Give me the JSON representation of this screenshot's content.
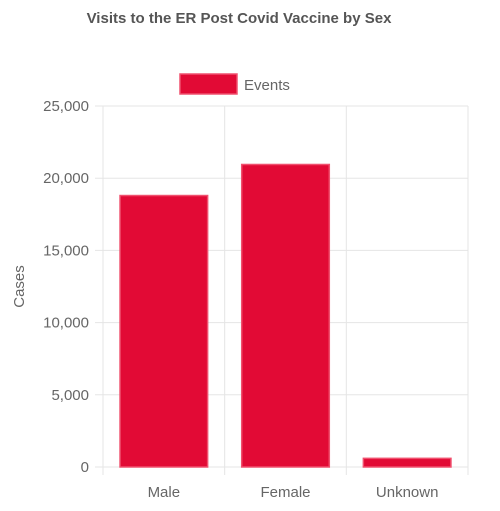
{
  "chart_data": {
    "type": "bar",
    "title": "Visits to the ER Post Covid Vaccine by Sex",
    "categories": [
      "Male",
      "Female",
      "Unknown"
    ],
    "series": [
      {
        "name": "Events",
        "values": [
          18800,
          20950,
          600
        ]
      }
    ],
    "xlabel": "",
    "ylabel": "Cases",
    "ylim": [
      0,
      25000
    ],
    "yticks": [
      0,
      5000,
      10000,
      15000,
      20000,
      25000
    ],
    "ytick_labels": [
      "0",
      "5,000",
      "10,000",
      "15,000",
      "20,000",
      "25,000"
    ],
    "grid": true,
    "legend_position": "top-center",
    "colors": {
      "bar_fill": "#e20a35",
      "bar_border": "#f0506e",
      "grid": "#e5e5e5"
    }
  }
}
